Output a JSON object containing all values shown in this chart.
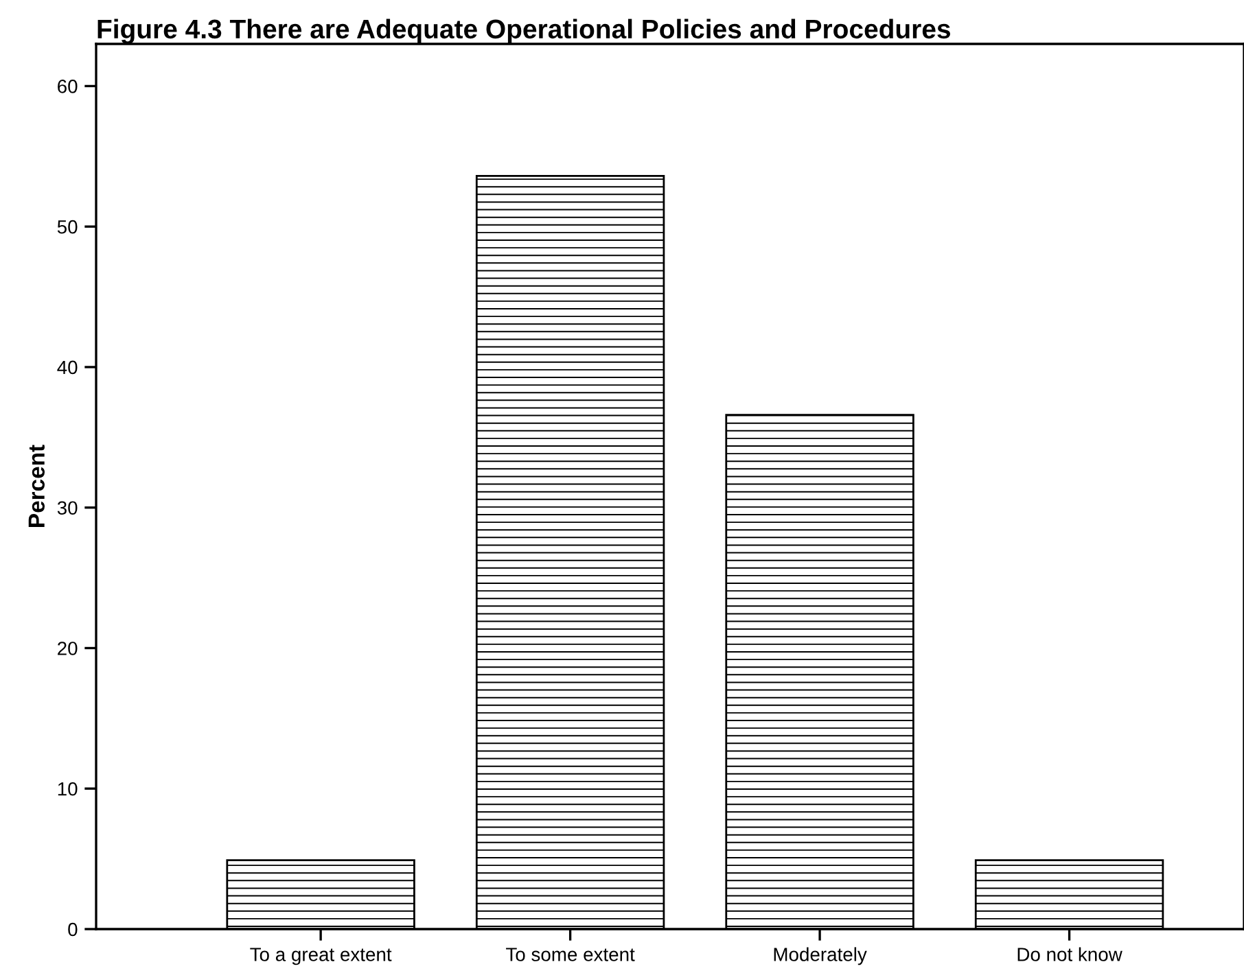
{
  "chart_data": {
    "type": "bar",
    "title": "Figure 4.3 There are Adequate Operational Policies and Procedures",
    "ylabel": "Percent",
    "categories": [
      "To a great extent",
      "To some extent",
      "Moderately",
      "Do not know"
    ],
    "values": [
      4.9,
      53.6,
      36.6,
      4.9
    ],
    "color": "#000000",
    "ylim": [
      0,
      63
    ],
    "yticks": [
      0,
      10,
      20,
      30,
      40,
      50,
      60
    ],
    "grid": false
  }
}
